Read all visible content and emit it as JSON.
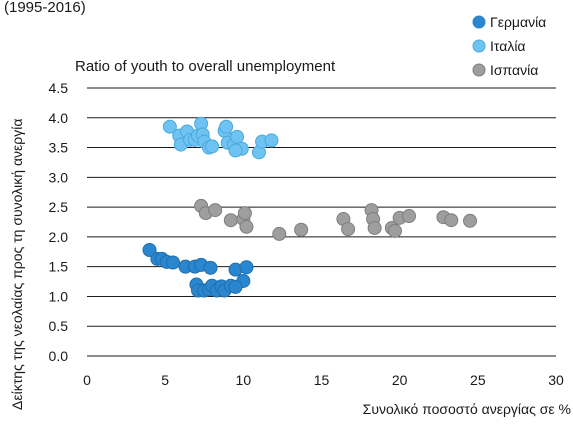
{
  "colors": {
    "germany": "#2a86cf",
    "italy": "#6ec3f2",
    "spain": "#9e9e9e",
    "grid": "#1a1a1a",
    "text": "#1a1a1a"
  },
  "chart_data": {
    "type": "scatter",
    "top_caption": "(1995-2016)",
    "title": "Ratio of youth to overall unemployment",
    "xlabel": "Συνολικό ποσοστό ανεργίας σε %",
    "ylabel": "Δείκτης της νεολαίας προς τη συνολική ανεργία",
    "xlim": [
      0,
      30
    ],
    "ylim": [
      0,
      4.5
    ],
    "x_ticks": [
      "0",
      "5",
      "10",
      "15",
      "20",
      "25",
      "30"
    ],
    "y_ticks": [
      "0.0",
      "0.5",
      "1.0",
      "1.5",
      "2.0",
      "2.5",
      "3.0",
      "3.5",
      "4.0",
      "4.5"
    ],
    "grid": "horizontal",
    "legend_position": "top-right",
    "series": [
      {
        "name": "Γερμανία",
        "color": "#2a86cf",
        "points": [
          [
            4.0,
            1.78
          ],
          [
            4.5,
            1.63
          ],
          [
            4.8,
            1.63
          ],
          [
            5.1,
            1.58
          ],
          [
            5.5,
            1.57
          ],
          [
            6.3,
            1.5
          ],
          [
            6.9,
            1.5
          ],
          [
            7.3,
            1.53
          ],
          [
            7.9,
            1.48
          ],
          [
            9.5,
            1.45
          ],
          [
            10.2,
            1.49
          ],
          [
            10.0,
            1.26
          ],
          [
            7.0,
            1.2
          ],
          [
            7.1,
            1.1
          ],
          [
            7.5,
            1.1
          ],
          [
            7.8,
            1.12
          ],
          [
            8.0,
            1.18
          ],
          [
            8.3,
            1.1
          ],
          [
            8.6,
            1.17
          ],
          [
            8.8,
            1.1
          ],
          [
            9.2,
            1.18
          ],
          [
            9.5,
            1.16
          ]
        ]
      },
      {
        "name": "Ιταλία",
        "color": "#6ec3f2",
        "points": [
          [
            5.3,
            3.85
          ],
          [
            5.9,
            3.7
          ],
          [
            6.0,
            3.55
          ],
          [
            6.4,
            3.77
          ],
          [
            6.6,
            3.63
          ],
          [
            6.9,
            3.63
          ],
          [
            7.1,
            3.7
          ],
          [
            7.3,
            3.9
          ],
          [
            7.4,
            3.72
          ],
          [
            7.5,
            3.6
          ],
          [
            7.8,
            3.5
          ],
          [
            8.0,
            3.52
          ],
          [
            8.8,
            3.78
          ],
          [
            8.9,
            3.85
          ],
          [
            9.0,
            3.58
          ],
          [
            9.4,
            3.55
          ],
          [
            9.6,
            3.68
          ],
          [
            9.9,
            3.48
          ],
          [
            11.0,
            3.42
          ],
          [
            11.2,
            3.6
          ],
          [
            11.8,
            3.62
          ],
          [
            9.5,
            3.45
          ]
        ]
      },
      {
        "name": "Ισπανία",
        "color": "#9e9e9e",
        "points": [
          [
            7.3,
            2.52
          ],
          [
            7.6,
            2.4
          ],
          [
            8.2,
            2.45
          ],
          [
            9.2,
            2.28
          ],
          [
            10.0,
            2.3
          ],
          [
            10.1,
            2.4
          ],
          [
            10.2,
            2.17
          ],
          [
            12.3,
            2.05
          ],
          [
            13.7,
            2.12
          ],
          [
            16.4,
            2.3
          ],
          [
            16.7,
            2.13
          ],
          [
            18.2,
            2.45
          ],
          [
            18.3,
            2.3
          ],
          [
            18.4,
            2.15
          ],
          [
            19.5,
            2.15
          ],
          [
            19.7,
            2.1
          ],
          [
            20.0,
            2.32
          ],
          [
            20.6,
            2.35
          ],
          [
            22.8,
            2.33
          ],
          [
            23.3,
            2.28
          ],
          [
            24.5,
            2.27
          ]
        ]
      }
    ]
  }
}
